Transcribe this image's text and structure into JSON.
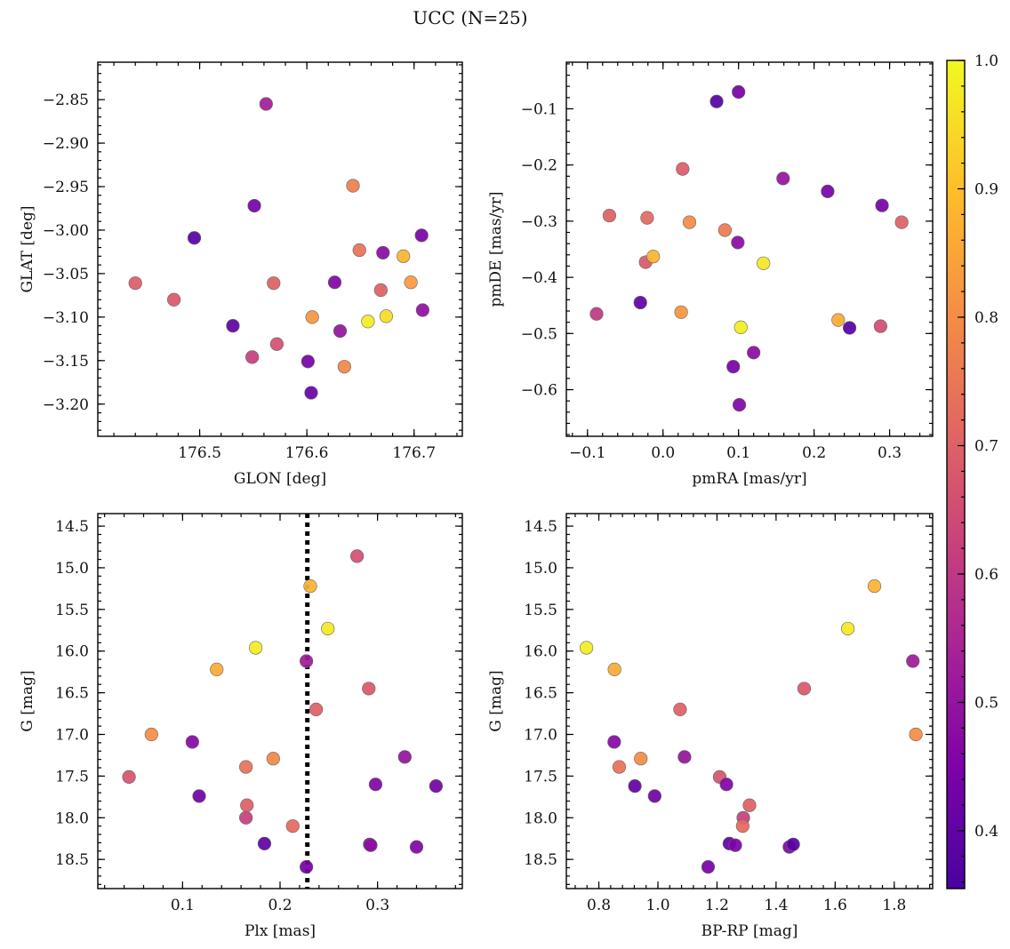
{
  "figure": {
    "title": "UCC (N=25)"
  },
  "colorbar": {
    "ticks": [
      0.4,
      0.5,
      0.6,
      0.7,
      0.8,
      0.9,
      1.0
    ],
    "tick_labels": [
      "0.4",
      "0.5",
      "0.6",
      "0.7",
      "0.8",
      "0.9",
      "1.0"
    ],
    "range": [
      0.355,
      1.0
    ],
    "colormap": "plasma"
  },
  "chart_data": [
    {
      "type": "scatter",
      "id": "glon_glat",
      "title": "",
      "xlabel": "GLON [deg]",
      "ylabel": "GLAT [deg]",
      "xlim": [
        176.405,
        176.745
      ],
      "ylim": [
        -3.237,
        -2.807
      ],
      "y_inverted": false,
      "xticks": [
        176.5,
        176.6,
        176.7
      ],
      "xtick_labels": [
        "176.5",
        "176.6",
        "176.7"
      ],
      "yticks": [
        -2.85,
        -2.9,
        -2.95,
        -3.0,
        -3.05,
        -3.1,
        -3.15,
        -3.2
      ],
      "ytick_labels": [
        "−2.85",
        "−2.90",
        "−2.95",
        "−3.00",
        "−3.05",
        "−3.10",
        "−3.15",
        "−3.20"
      ],
      "x": [
        176.44,
        176.476,
        176.495,
        176.531,
        176.549,
        176.551,
        176.562,
        176.569,
        176.572,
        176.601,
        176.604,
        176.605,
        176.626,
        176.631,
        176.635,
        176.643,
        176.649,
        176.657,
        176.669,
        176.671,
        176.674,
        176.69,
        176.697,
        176.707,
        176.708
      ],
      "y": [
        -3.061,
        -3.08,
        -3.009,
        -3.11,
        -3.146,
        -2.972,
        -2.855,
        -3.061,
        -3.131,
        -3.151,
        -3.187,
        -3.1,
        -3.06,
        -3.116,
        -3.157,
        -2.949,
        -3.023,
        -3.105,
        -3.069,
        -3.026,
        -3.099,
        -3.03,
        -3.06,
        -3.006,
        -3.092
      ],
      "c": [
        0.69,
        0.68,
        0.38,
        0.4,
        0.62,
        0.44,
        0.53,
        0.7,
        0.66,
        0.44,
        0.42,
        0.82,
        0.46,
        0.5,
        0.79,
        0.77,
        0.74,
        0.98,
        0.7,
        0.48,
        0.95,
        0.88,
        0.83,
        0.45,
        0.49
      ]
    },
    {
      "type": "scatter",
      "id": "pmra_pmde",
      "title": "",
      "xlabel": "pmRA [mas/yr]",
      "ylabel": "pmDE [mas/yr]",
      "xlim": [
        -0.128,
        0.357
      ],
      "ylim": [
        -0.683,
        -0.017
      ],
      "y_inverted": false,
      "xticks": [
        -0.1,
        0.0,
        0.1,
        0.2,
        0.3
      ],
      "xtick_labels": [
        "−0.1",
        "0.0",
        "0.1",
        "0.2",
        "0.3"
      ],
      "yticks": [
        -0.1,
        -0.2,
        -0.3,
        -0.4,
        -0.5,
        -0.6
      ],
      "ytick_labels": [
        "−0.1",
        "−0.2",
        "−0.3",
        "−0.4",
        "−0.5",
        "−0.6"
      ],
      "x": [
        -0.088,
        -0.071,
        -0.03,
        -0.023,
        -0.021,
        -0.013,
        0.024,
        0.026,
        0.035,
        0.071,
        0.082,
        0.093,
        0.099,
        0.1,
        0.101,
        0.103,
        0.12,
        0.133,
        0.159,
        0.218,
        0.232,
        0.247,
        0.288,
        0.29,
        0.316
      ],
      "y": [
        -0.465,
        -0.29,
        -0.445,
        -0.373,
        -0.294,
        -0.363,
        -0.462,
        -0.207,
        -0.302,
        -0.087,
        -0.316,
        -0.559,
        -0.338,
        -0.07,
        -0.627,
        -0.489,
        -0.534,
        -0.375,
        -0.224,
        -0.247,
        -0.476,
        -0.49,
        -0.487,
        -0.272,
        -0.302
      ],
      "c": [
        0.6,
        0.7,
        0.4,
        0.68,
        0.72,
        0.88,
        0.82,
        0.69,
        0.8,
        0.38,
        0.76,
        0.44,
        0.48,
        0.44,
        0.46,
        0.98,
        0.48,
        0.97,
        0.5,
        0.44,
        0.86,
        0.38,
        0.65,
        0.44,
        0.7
      ]
    },
    {
      "type": "scatter",
      "id": "plx_g",
      "title": "",
      "xlabel": "Plx [mas]",
      "ylabel": "G [mag]",
      "xlim": [
        0.013,
        0.387
      ],
      "ylim": [
        18.85,
        14.35
      ],
      "y_inverted": true,
      "vline": {
        "x": 0.228,
        "style": "dotted",
        "color": "#000000"
      },
      "xticks": [
        0.1,
        0.2,
        0.3
      ],
      "xtick_labels": [
        "0.1",
        "0.2",
        "0.3"
      ],
      "yticks": [
        14.5,
        15.0,
        15.5,
        16.0,
        16.5,
        17.0,
        17.5,
        18.0,
        18.5
      ],
      "ytick_labels": [
        "14.5",
        "15.0",
        "15.5",
        "16.0",
        "16.5",
        "17.0",
        "17.5",
        "18.0",
        "18.5"
      ],
      "x": [
        0.045,
        0.068,
        0.11,
        0.117,
        0.135,
        0.175,
        0.165,
        0.166,
        0.165,
        0.184,
        0.193,
        0.213,
        0.227,
        0.227,
        0.231,
        0.237,
        0.249,
        0.279,
        0.291,
        0.292,
        0.293,
        0.298,
        0.328,
        0.34,
        0.36
      ],
      "y": [
        17.51,
        17.0,
        17.09,
        17.74,
        16.22,
        15.96,
        17.39,
        17.85,
        18.0,
        18.31,
        17.29,
        18.1,
        18.59,
        16.12,
        15.22,
        16.7,
        15.73,
        14.86,
        16.45,
        18.32,
        18.33,
        17.6,
        17.27,
        18.35,
        17.62
      ],
      "c": [
        0.67,
        0.8,
        0.47,
        0.43,
        0.86,
        0.98,
        0.74,
        0.7,
        0.62,
        0.4,
        0.79,
        0.72,
        0.44,
        0.52,
        0.88,
        0.7,
        0.97,
        0.66,
        0.68,
        0.45,
        0.49,
        0.46,
        0.5,
        0.46,
        0.43
      ]
    },
    {
      "type": "scatter",
      "id": "bprp_g",
      "title": "",
      "xlabel": "BP-RP [mag]",
      "ylabel": "G [mag]",
      "xlim": [
        0.69,
        1.93
      ],
      "ylim": [
        18.85,
        14.35
      ],
      "y_inverted": true,
      "xticks": [
        0.8,
        1.0,
        1.2,
        1.4,
        1.6,
        1.8
      ],
      "xtick_labels": [
        "0.8",
        "1.0",
        "1.2",
        "1.4",
        "1.6",
        "1.8"
      ],
      "yticks": [
        14.5,
        15.0,
        15.5,
        16.0,
        16.5,
        17.0,
        17.5,
        18.0,
        18.5
      ],
      "ytick_labels": [
        "14.5",
        "15.0",
        "15.5",
        "16.0",
        "16.5",
        "17.0",
        "17.5",
        "18.0",
        "18.5"
      ],
      "x": [
        0.758,
        0.853,
        0.852,
        0.869,
        0.922,
        0.942,
        0.989,
        1.075,
        1.09,
        1.17,
        1.209,
        1.232,
        1.242,
        1.262,
        1.289,
        1.287,
        1.31,
        1.445,
        1.458,
        1.495,
        1.643,
        1.733,
        1.863,
        1.873
      ],
      "y": [
        15.96,
        16.22,
        17.09,
        17.39,
        17.62,
        17.29,
        17.74,
        16.7,
        17.27,
        18.59,
        17.51,
        17.6,
        18.31,
        18.33,
        18.0,
        18.1,
        17.85,
        18.35,
        18.32,
        16.45,
        15.73,
        15.22,
        16.12,
        17.0
      ],
      "c": [
        0.98,
        0.86,
        0.47,
        0.74,
        0.4,
        0.8,
        0.43,
        0.7,
        0.5,
        0.44,
        0.67,
        0.46,
        0.4,
        0.45,
        0.62,
        0.72,
        0.7,
        0.46,
        0.38,
        0.68,
        0.97,
        0.88,
        0.52,
        0.8
      ]
    }
  ]
}
